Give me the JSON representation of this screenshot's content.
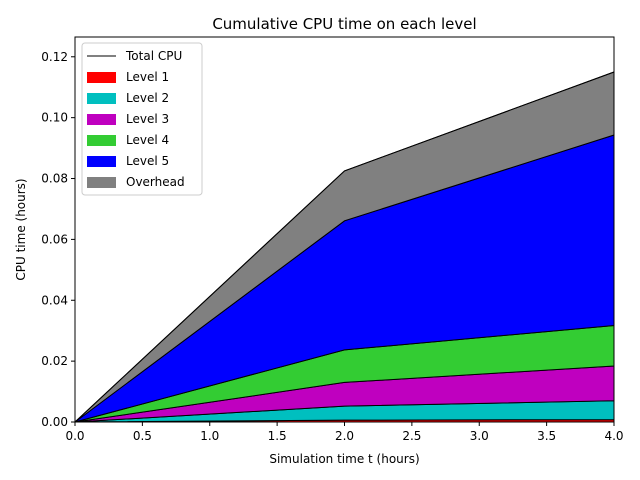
{
  "chart_data": {
    "type": "area",
    "title": "Cumulative CPU time on each level",
    "xlabel": "Simulation time t (hours)",
    "ylabel": "CPU time (hours)",
    "xlim": [
      0.0,
      4.0
    ],
    "ylim": [
      0.0,
      0.1265
    ],
    "xticks": [
      "0.0",
      "0.5",
      "1.0",
      "1.5",
      "2.0",
      "2.5",
      "3.0",
      "3.5",
      "4.0"
    ],
    "yticks": [
      "0.00",
      "0.02",
      "0.04",
      "0.06",
      "0.08",
      "0.10",
      "0.12"
    ],
    "grid": false,
    "legend_position": "top-left",
    "stacked": true,
    "x": [
      0.0,
      2.0,
      4.0
    ],
    "total": {
      "name": "Total CPU",
      "color": "#000000",
      "values": [
        0.0,
        0.0825,
        0.115
      ]
    },
    "series": [
      {
        "name": "Level 1",
        "color": "#ff0000",
        "values": [
          0.0,
          0.0006,
          0.0008
        ]
      },
      {
        "name": "Level 2",
        "color": "#00bfbf",
        "values": [
          0.0,
          0.0046,
          0.0062
        ]
      },
      {
        "name": "Level 3",
        "color": "#bf00bf",
        "values": [
          0.0,
          0.0078,
          0.0114
        ]
      },
      {
        "name": "Level 4",
        "color": "#33cc33",
        "values": [
          0.0,
          0.0107,
          0.0133
        ]
      },
      {
        "name": "Level 5",
        "color": "#0000ff",
        "values": [
          0.0,
          0.0424,
          0.0626
        ]
      },
      {
        "name": "Overhead",
        "color": "#808080",
        "values": [
          0.0,
          0.0164,
          0.0207
        ]
      }
    ]
  }
}
